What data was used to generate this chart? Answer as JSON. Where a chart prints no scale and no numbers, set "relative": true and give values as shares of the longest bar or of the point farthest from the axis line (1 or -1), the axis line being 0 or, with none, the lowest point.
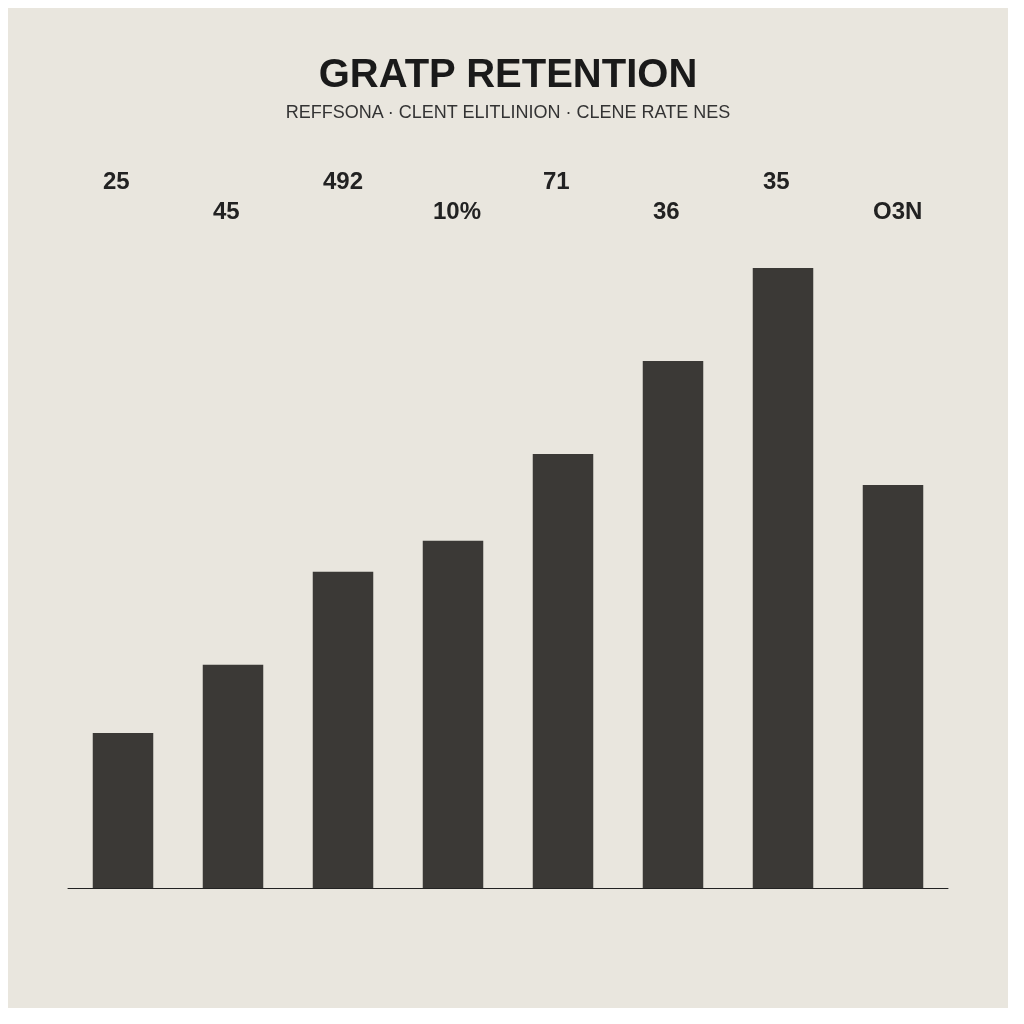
{
  "chart_data": {
    "type": "bar",
    "title": "GRATP RETENTION",
    "subtitle": "REFFSONA · CLENT ELITLINION · CLENE RATE NES",
    "categories": [
      null,
      null,
      null,
      null,
      null,
      null,
      null,
      null
    ],
    "relative": true,
    "values": [
      0.25,
      0.36,
      0.51,
      0.56,
      0.7,
      0.85,
      1.0,
      0.65
    ],
    "color": "#3b3936",
    "annotations": [
      "25",
      "45",
      "492",
      "10%",
      "71",
      "36",
      "35",
      "O3N"
    ]
  }
}
